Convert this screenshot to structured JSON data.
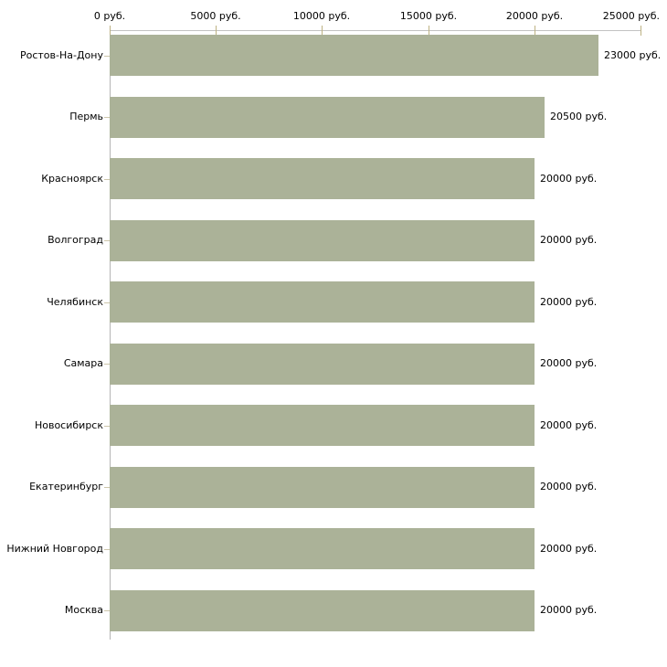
{
  "chart_data": {
    "type": "bar",
    "orientation": "horizontal",
    "title": "",
    "xlabel": "",
    "ylabel": "",
    "xlim": [
      0,
      25000
    ],
    "unit": "руб.",
    "grid": false,
    "legend": false,
    "categories": [
      "Ростов-На-Дону",
      "Пермь",
      "Красноярск",
      "Волгоград",
      "Челябинск",
      "Самара",
      "Новосибирск",
      "Екатеринбург",
      "Нижний Новгород",
      "Москва"
    ],
    "values": [
      23000,
      20500,
      20000,
      20000,
      20000,
      20000,
      20000,
      20000,
      20000,
      20000
    ],
    "value_labels": [
      "23000 руб.",
      "20500 руб.",
      "20000 руб.",
      "20000 руб.",
      "20000 руб.",
      "20000 руб.",
      "20000 руб.",
      "20000 руб.",
      "20000 руб.",
      "20000 руб."
    ],
    "x_ticks": [
      {
        "value": 0,
        "label": "0 руб."
      },
      {
        "value": 5000,
        "label": "5000 руб."
      },
      {
        "value": 10000,
        "label": "10000 руб."
      },
      {
        "value": 15000,
        "label": "15000 руб."
      },
      {
        "value": 20000,
        "label": "20000 руб."
      },
      {
        "value": 25000,
        "label": "25000 руб."
      }
    ],
    "colors": {
      "bar": "#abb298",
      "axis_line_horizontal": "#c2c2c2",
      "axis_line_vertical": "#b5b5b5",
      "tick": "#bdb283",
      "category_tick": "#cdc6ab",
      "text": "#000000",
      "background": "#ffffff"
    }
  }
}
